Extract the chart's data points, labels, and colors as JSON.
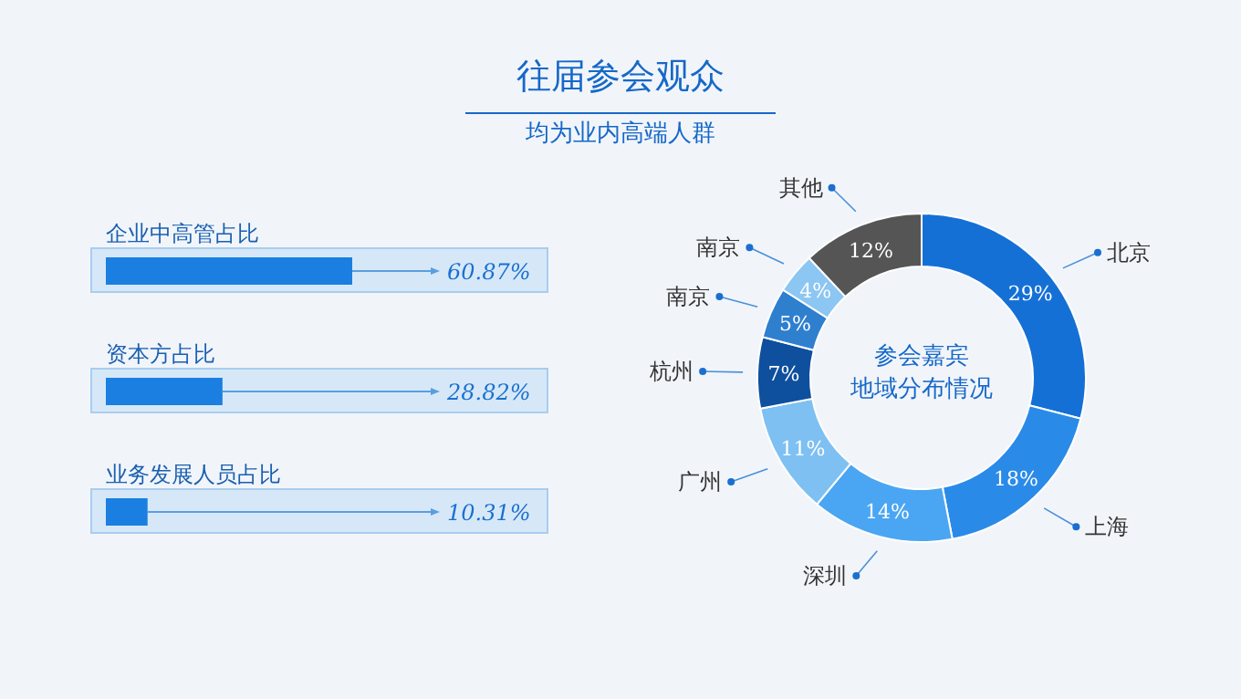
{
  "chart_data": [
    {
      "type": "other",
      "title": "往届参会观众",
      "subtitle": "均为业内高端人群"
    },
    {
      "type": "bar",
      "orientation": "horizontal",
      "categories": [
        "企业中高管占比",
        "资本方占比",
        "业务发展人员占比"
      ],
      "values": [
        60.87,
        28.82,
        10.31
      ],
      "value_labels": [
        "60.87%",
        "28.82%",
        "10.31%"
      ],
      "color": "#1a7fe0"
    },
    {
      "type": "donut",
      "title": "参会嘉宾地域分布情况",
      "categories": [
        "北京",
        "上海",
        "深圳",
        "广州",
        "杭州",
        "南京",
        "南京",
        "其他"
      ],
      "values": [
        29,
        18,
        14,
        11,
        7,
        5,
        4,
        12
      ],
      "value_labels": [
        "29%",
        "18%",
        "14%",
        "11%",
        "7%",
        "5%",
        "4%",
        "12%"
      ],
      "colors": [
        "#1570d6",
        "#2a8ae8",
        "#4aa6f2",
        "#7fc0f2",
        "#0e4f9e",
        "#2f7fcf",
        "#8cc6f2",
        "#555555"
      ]
    }
  ]
}
